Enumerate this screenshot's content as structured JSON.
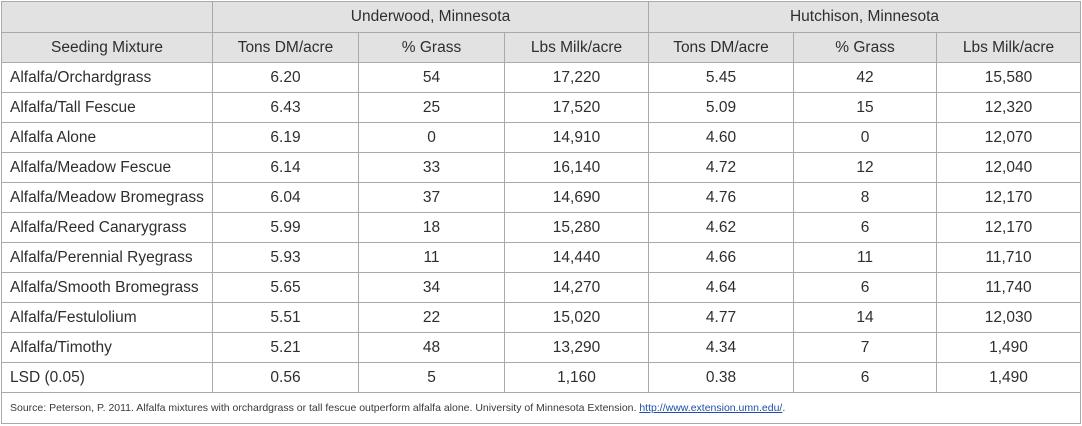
{
  "table": {
    "group_headers": [
      "Underwood, Minnesota",
      "Hutchison, Minnesota"
    ],
    "columns": [
      "Seeding Mixture",
      "Tons DM/acre",
      "% Grass",
      "Lbs Milk/acre",
      "Tons DM/acre",
      "% Grass",
      "Lbs Milk/acre"
    ],
    "rows": [
      [
        "Alfalfa/Orchardgrass",
        "6.20",
        "54",
        "17,220",
        "5.45",
        "42",
        "15,580"
      ],
      [
        "Alfalfa/Tall Fescue",
        "6.43",
        "25",
        "17,520",
        "5.09",
        "15",
        "12,320"
      ],
      [
        "Alfalfa Alone",
        "6.19",
        "0",
        "14,910",
        "4.60",
        "0",
        "12,070"
      ],
      [
        "Alfalfa/Meadow Fescue",
        "6.14",
        "33",
        "16,140",
        "4.72",
        "12",
        "12,040"
      ],
      [
        "Alfalfa/Meadow Bromegrass",
        "6.04",
        "37",
        "14,690",
        "4.76",
        "8",
        "12,170"
      ],
      [
        "Alfalfa/Reed Canarygrass",
        "5.99",
        "18",
        "15,280",
        "4.62",
        "6",
        "12,170"
      ],
      [
        "Alfalfa/Perennial Ryegrass",
        "5.93",
        "11",
        "14,440",
        "4.66",
        "11",
        "11,710"
      ],
      [
        "Alfalfa/Smooth Bromegrass",
        "5.65",
        "34",
        "14,270",
        "4.64",
        "6",
        "11,740"
      ],
      [
        "Alfalfa/Festulolium",
        "5.51",
        "22",
        "15,020",
        "4.77",
        "14",
        "12,030"
      ],
      [
        "Alfalfa/Timothy",
        "5.21",
        "48",
        "13,290",
        "4.34",
        "7",
        "1,490"
      ],
      [
        "LSD (0.05)",
        "0.56",
        "5",
        "1,160",
        "0.38",
        "6",
        "1,490"
      ]
    ],
    "source_text": "Source: Peterson, P. 2011. Alfalfa mixtures with orchardgrass or tall fescue outperform alfalfa alone. University of Minnesota Extension. ",
    "source_link": "http://www.extension.umn.edu/",
    "source_tail": "."
  },
  "colors": {
    "header_bg": "#e2e2e2",
    "border": "#a9a9a9",
    "link": "#1f4fa8"
  }
}
